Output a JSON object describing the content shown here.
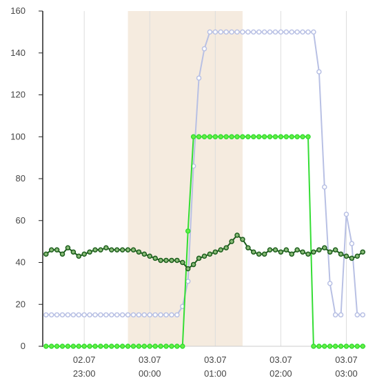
{
  "chart_data": {
    "type": "line",
    "title": "",
    "xlabel": "",
    "ylabel": "",
    "ylim": [
      0,
      160
    ],
    "yticks": [
      0,
      20,
      40,
      60,
      80,
      100,
      120,
      140,
      160
    ],
    "xlim": [
      "02.07 22:22",
      "03.07 03:18"
    ],
    "xticks": [
      {
        "date": "02.07",
        "time": "23:00",
        "value": "02.07 23:00"
      },
      {
        "date": "03.07",
        "time": "00:00",
        "value": "03.07 00:00"
      },
      {
        "date": "03.07",
        "time": "01:00",
        "value": "03.07 01:00"
      },
      {
        "date": "03.07",
        "time": "02:00",
        "value": "03.07 02:00"
      },
      {
        "date": "03.07",
        "time": "03:00",
        "value": "03.07 03:00"
      }
    ],
    "grid": {
      "vertical": true,
      "horizontal": false
    },
    "highlight_band": {
      "from": "02.07 23:40",
      "to": "03.07 01:25",
      "color": "#f5ebdf"
    },
    "series": [
      {
        "color": "#b8c0e4",
        "marker_fill": "#ffffff",
        "x": [
          "02.07 22:25",
          "02.07 22:30",
          "02.07 22:35",
          "02.07 22:40",
          "02.07 22:45",
          "02.07 22:50",
          "02.07 22:55",
          "02.07 23:00",
          "02.07 23:05",
          "02.07 23:10",
          "02.07 23:15",
          "02.07 23:20",
          "02.07 23:25",
          "02.07 23:30",
          "02.07 23:35",
          "02.07 23:40",
          "02.07 23:45",
          "02.07 23:50",
          "02.07 23:55",
          "03.07 00:00",
          "03.07 00:05",
          "03.07 00:10",
          "03.07 00:15",
          "03.07 00:20",
          "03.07 00:25",
          "03.07 00:30",
          "03.07 00:35",
          "03.07 00:40",
          "03.07 00:45",
          "03.07 00:50",
          "03.07 00:55",
          "03.07 01:00",
          "03.07 01:05",
          "03.07 01:10",
          "03.07 01:15",
          "03.07 01:20",
          "03.07 01:25",
          "03.07 01:30",
          "03.07 01:35",
          "03.07 01:40",
          "03.07 01:45",
          "03.07 01:50",
          "03.07 01:55",
          "03.07 02:00",
          "03.07 02:05",
          "03.07 02:10",
          "03.07 02:15",
          "03.07 02:20",
          "03.07 02:25",
          "03.07 02:30",
          "03.07 02:35",
          "03.07 02:40",
          "03.07 02:45",
          "03.07 02:50",
          "03.07 02:55",
          "03.07 03:00",
          "03.07 03:05",
          "03.07 03:10",
          "03.07 03:15"
        ],
        "values": [
          15,
          15,
          15,
          15,
          15,
          15,
          15,
          15,
          15,
          15,
          15,
          15,
          15,
          15,
          15,
          15,
          15,
          15,
          15,
          15,
          15,
          15,
          15,
          15,
          15,
          19,
          31,
          86,
          128,
          142,
          150,
          150,
          150,
          150,
          150,
          150,
          150,
          150,
          150,
          150,
          150,
          150,
          150,
          150,
          150,
          150,
          150,
          150,
          150,
          150,
          131,
          76,
          30,
          15,
          15,
          63,
          49,
          15,
          15
        ]
      },
      {
        "color": "#33dd33",
        "marker_fill": "#66ee44",
        "x": [
          "02.07 22:25",
          "02.07 22:30",
          "02.07 22:35",
          "02.07 22:40",
          "02.07 22:45",
          "02.07 22:50",
          "02.07 22:55",
          "02.07 23:00",
          "02.07 23:05",
          "02.07 23:10",
          "02.07 23:15",
          "02.07 23:20",
          "02.07 23:25",
          "02.07 23:30",
          "02.07 23:35",
          "02.07 23:40",
          "02.07 23:45",
          "02.07 23:50",
          "02.07 23:55",
          "03.07 00:00",
          "03.07 00:05",
          "03.07 00:10",
          "03.07 00:15",
          "03.07 00:20",
          "03.07 00:25",
          "03.07 00:30",
          "03.07 00:35",
          "03.07 00:40",
          "03.07 00:45",
          "03.07 00:50",
          "03.07 00:55",
          "03.07 01:00",
          "03.07 01:05",
          "03.07 01:10",
          "03.07 01:15",
          "03.07 01:20",
          "03.07 01:25",
          "03.07 01:30",
          "03.07 01:35",
          "03.07 01:40",
          "03.07 01:45",
          "03.07 01:50",
          "03.07 01:55",
          "03.07 02:00",
          "03.07 02:05",
          "03.07 02:10",
          "03.07 02:15",
          "03.07 02:20",
          "03.07 02:25",
          "03.07 02:30",
          "03.07 02:35",
          "03.07 02:40",
          "03.07 02:45",
          "03.07 02:50",
          "03.07 02:55",
          "03.07 03:00",
          "03.07 03:05",
          "03.07 03:10",
          "03.07 03:15"
        ],
        "values": [
          0,
          0,
          0,
          0,
          0,
          0,
          0,
          0,
          0,
          0,
          0,
          0,
          0,
          0,
          0,
          0,
          0,
          0,
          0,
          0,
          0,
          0,
          0,
          0,
          0,
          0,
          55,
          100,
          100,
          100,
          100,
          100,
          100,
          100,
          100,
          100,
          100,
          100,
          100,
          100,
          100,
          100,
          100,
          100,
          100,
          100,
          100,
          100,
          100,
          0,
          0,
          0,
          0,
          0,
          0,
          0,
          0,
          0,
          0
        ]
      },
      {
        "color": "#1a5c1a",
        "marker_fill": "#88bb77",
        "x": [
          "02.07 22:25",
          "02.07 22:30",
          "02.07 22:35",
          "02.07 22:40",
          "02.07 22:45",
          "02.07 22:50",
          "02.07 22:55",
          "02.07 23:00",
          "02.07 23:05",
          "02.07 23:10",
          "02.07 23:15",
          "02.07 23:20",
          "02.07 23:25",
          "02.07 23:30",
          "02.07 23:35",
          "02.07 23:40",
          "02.07 23:45",
          "02.07 23:50",
          "02.07 23:55",
          "03.07 00:00",
          "03.07 00:05",
          "03.07 00:10",
          "03.07 00:15",
          "03.07 00:20",
          "03.07 00:25",
          "03.07 00:30",
          "03.07 00:35",
          "03.07 00:40",
          "03.07 00:45",
          "03.07 00:50",
          "03.07 00:55",
          "03.07 01:00",
          "03.07 01:05",
          "03.07 01:10",
          "03.07 01:15",
          "03.07 01:20",
          "03.07 01:25",
          "03.07 01:30",
          "03.07 01:35",
          "03.07 01:40",
          "03.07 01:45",
          "03.07 01:50",
          "03.07 01:55",
          "03.07 02:00",
          "03.07 02:05",
          "03.07 02:10",
          "03.07 02:15",
          "03.07 02:20",
          "03.07 02:25",
          "03.07 02:30",
          "03.07 02:35",
          "03.07 02:40",
          "03.07 02:45",
          "03.07 02:50",
          "03.07 02:55",
          "03.07 03:00",
          "03.07 03:05",
          "03.07 03:10",
          "03.07 03:15"
        ],
        "values": [
          44,
          46,
          46,
          44,
          47,
          45,
          43,
          44,
          45,
          46,
          46,
          47,
          46,
          46,
          46,
          46,
          46,
          45,
          44,
          43,
          42,
          41,
          41,
          41,
          41,
          40,
          37,
          39,
          42,
          43,
          44,
          45,
          46,
          47,
          50,
          53,
          51,
          47,
          45,
          44,
          44,
          46,
          46,
          45,
          46,
          44,
          46,
          45,
          44,
          45,
          46,
          47,
          45,
          46,
          44,
          43,
          42,
          43,
          45
        ]
      }
    ]
  }
}
